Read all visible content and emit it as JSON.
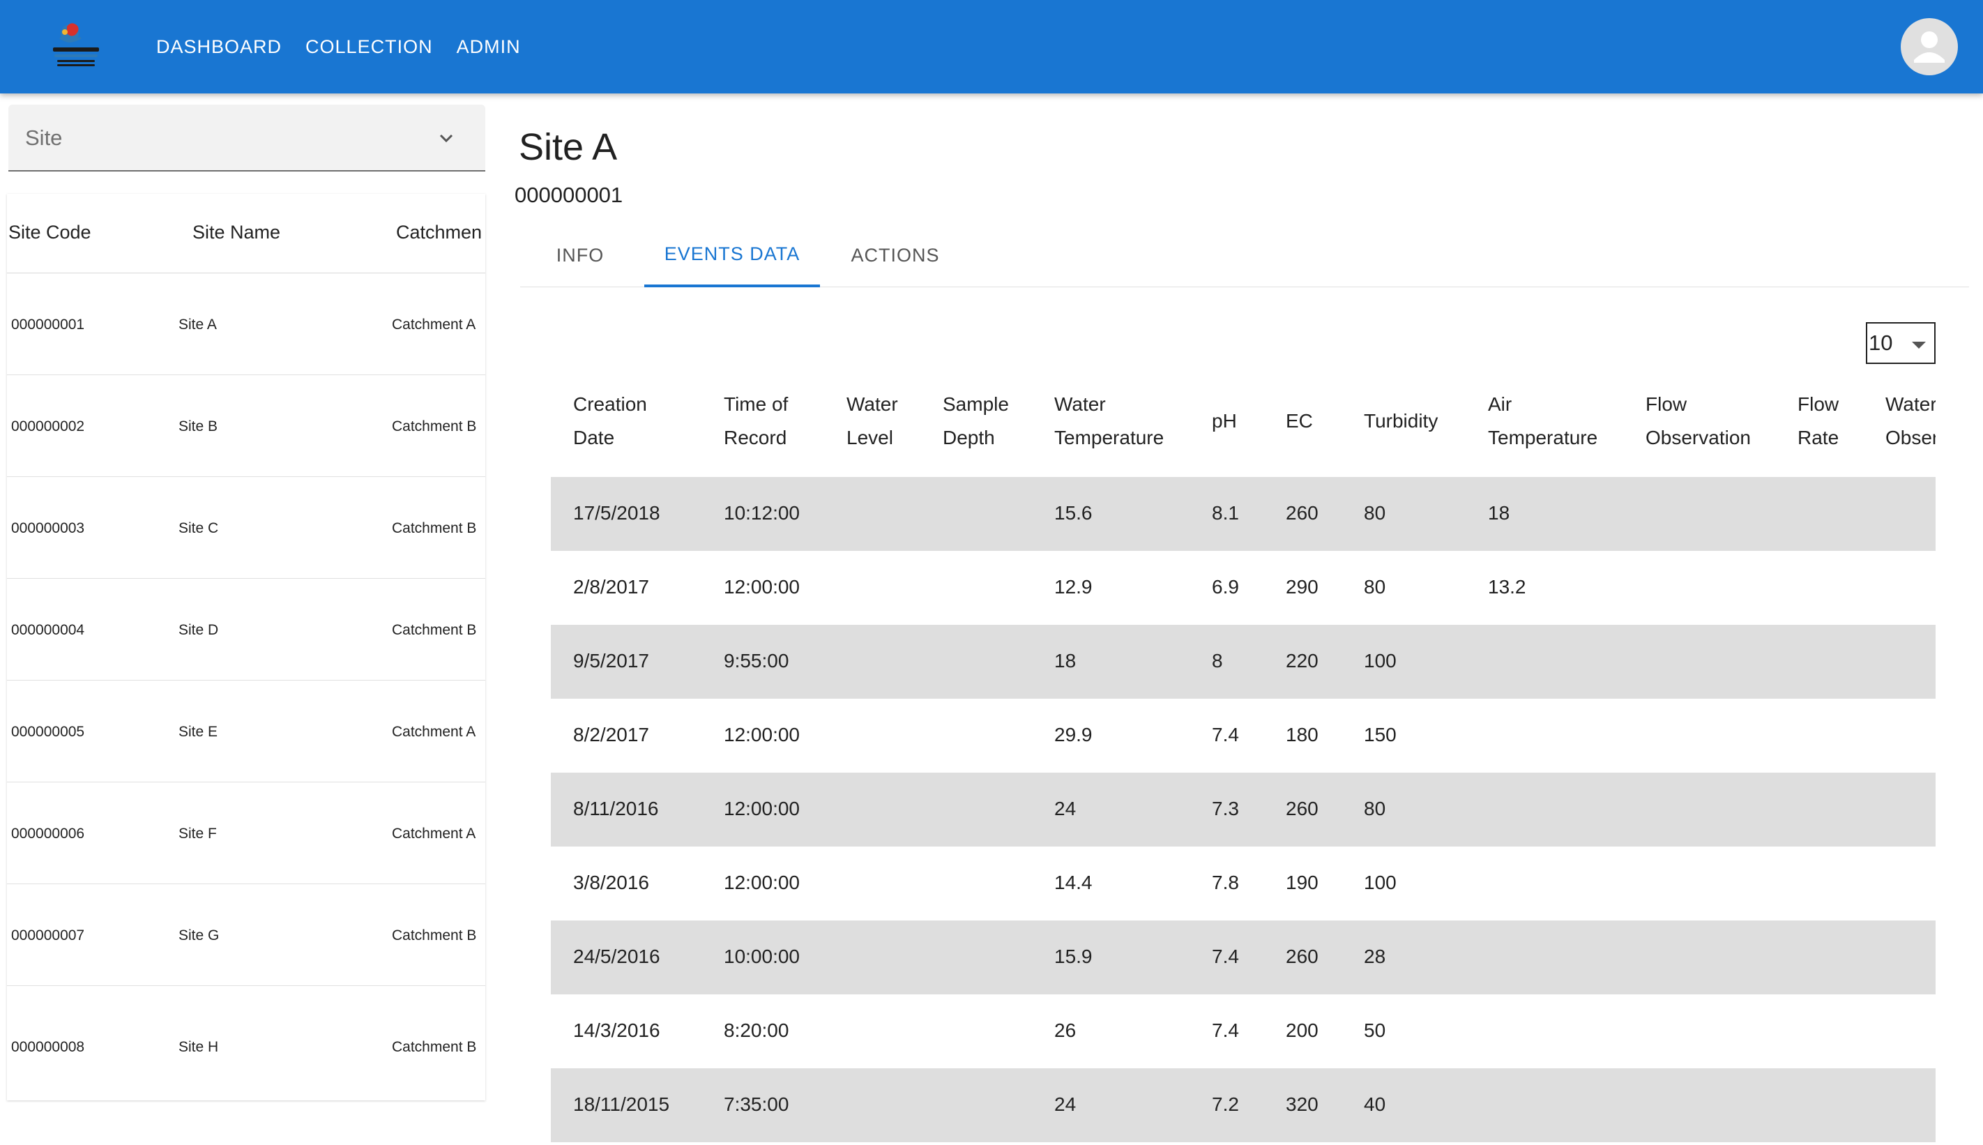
{
  "appbar": {
    "logo_icon": "queensland-catchments-logo-icon",
    "nav": [
      "DASHBOARD",
      "COLLECTION",
      "ADMIN"
    ],
    "avatar_icon": "account-circle-icon"
  },
  "site_selector": {
    "label": "Site",
    "icon": "chevron-down-icon"
  },
  "site_table": {
    "headers": [
      "Site Code",
      "Site Name",
      "Catchmen"
    ],
    "rows": [
      [
        "000000001",
        "Site A",
        "Catchment A"
      ],
      [
        "000000002",
        "Site B",
        "Catchment B"
      ],
      [
        "000000003",
        "Site C",
        "Catchment B"
      ],
      [
        "000000004",
        "Site D",
        "Catchment B"
      ],
      [
        "000000005",
        "Site E",
        "Catchment A"
      ],
      [
        "000000006",
        "Site F",
        "Catchment A"
      ],
      [
        "000000007",
        "Site G",
        "Catchment B"
      ],
      [
        "000000008",
        "Site H",
        "Catchment B"
      ]
    ]
  },
  "site_detail": {
    "title": "Site A",
    "code": "000000001",
    "tabs": [
      {
        "label": "INFO",
        "active": false
      },
      {
        "label": "EVENTS DATA",
        "active": true
      },
      {
        "label": "ACTIONS",
        "active": false
      }
    ]
  },
  "events": {
    "page_size": "10",
    "headers": [
      [
        "Creation",
        "Date"
      ],
      [
        "Time of",
        "Record"
      ],
      [
        "Water",
        "Level"
      ],
      [
        "Sample",
        "Depth"
      ],
      [
        "Water",
        "Temperature"
      ],
      [
        "pH"
      ],
      [
        "EC"
      ],
      [
        "Turbidity"
      ],
      [
        "Air",
        "Temperature"
      ],
      [
        "Flow",
        "Observation"
      ],
      [
        "Flow",
        "Rate"
      ],
      [
        "Water",
        "Obser"
      ]
    ],
    "rows": [
      [
        "17/5/2018",
        "10:12:00",
        "",
        "",
        "15.6",
        "8.1",
        "260",
        "80",
        "18",
        "",
        "",
        ""
      ],
      [
        "2/8/2017",
        "12:00:00",
        "",
        "",
        "12.9",
        "6.9",
        "290",
        "80",
        "13.2",
        "",
        "",
        ""
      ],
      [
        "9/5/2017",
        "9:55:00",
        "",
        "",
        "18",
        "8",
        "220",
        "100",
        "",
        "",
        "",
        ""
      ],
      [
        "8/2/2017",
        "12:00:00",
        "",
        "",
        "29.9",
        "7.4",
        "180",
        "150",
        "",
        "",
        "",
        ""
      ],
      [
        "8/11/2016",
        "12:00:00",
        "",
        "",
        "24",
        "7.3",
        "260",
        "80",
        "",
        "",
        "",
        ""
      ],
      [
        "3/8/2016",
        "12:00:00",
        "",
        "",
        "14.4",
        "7.8",
        "190",
        "100",
        "",
        "",
        "",
        ""
      ],
      [
        "24/5/2016",
        "10:00:00",
        "",
        "",
        "15.9",
        "7.4",
        "260",
        "28",
        "",
        "",
        "",
        ""
      ],
      [
        "14/3/2016",
        "8:20:00",
        "",
        "",
        "26",
        "7.4",
        "200",
        "50",
        "",
        "",
        "",
        ""
      ],
      [
        "18/11/2015",
        "7:35:00",
        "",
        "",
        "24",
        "7.2",
        "320",
        "40",
        "",
        "",
        "",
        ""
      ]
    ]
  }
}
